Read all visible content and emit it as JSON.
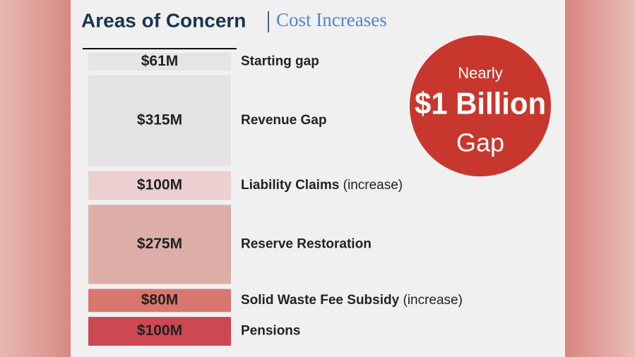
{
  "chart_data": {
    "type": "stacked-blocks",
    "title": "Areas of Concern",
    "subtitle": "Cost Increases",
    "categories": [
      "Starting gap",
      "Revenue Gap",
      "Liability Claims",
      "Reserve Restoration",
      "Solid Waste Fee Subsidy",
      "Pensions"
    ],
    "category_notes": [
      null,
      null,
      "(increase)",
      null,
      "(increase)",
      null
    ],
    "values": [
      61,
      315,
      100,
      275,
      80,
      100
    ],
    "value_labels": [
      "$61M",
      "$315M",
      "$100M",
      "$275M",
      "$80M",
      "$100M"
    ],
    "colors": [
      "#e5e5e5",
      "#e4e2e3",
      "#eccfd1",
      "#ddaea8",
      "#d9776e",
      "#cc4853"
    ],
    "annotations": [
      "Nearly",
      "$1 Billion",
      "Gap"
    ],
    "annotation_color": "#c8372d"
  }
}
